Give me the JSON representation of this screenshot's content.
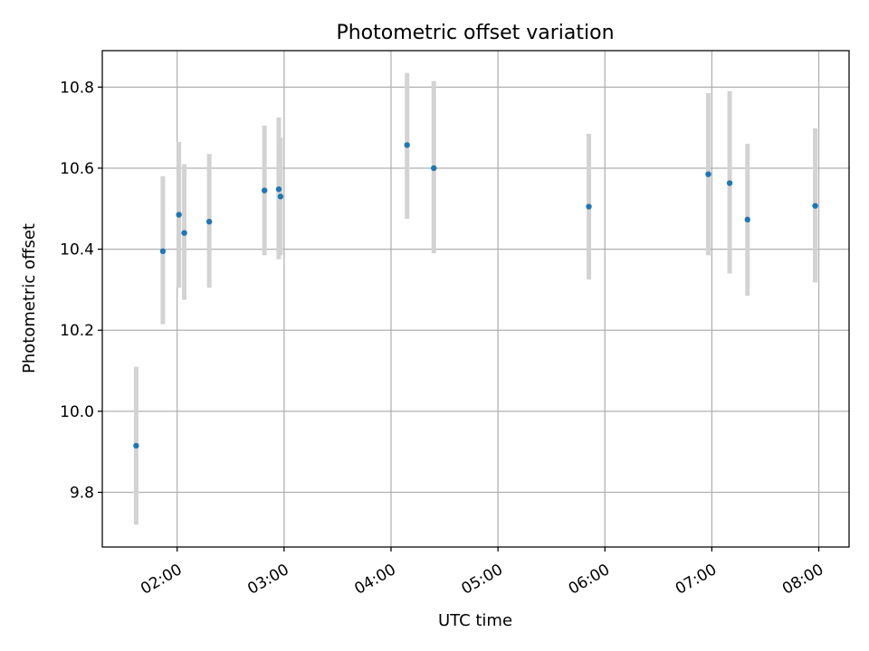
{
  "chart_data": {
    "type": "scatter",
    "title": "Photometric offset variation",
    "xlabel": "UTC time",
    "ylabel": "Photometric offset",
    "x_is_time": true,
    "xlim": [
      "01:18",
      "08:17"
    ],
    "ylim": [
      9.665,
      10.89
    ],
    "xticks": [
      "02:00",
      "03:00",
      "04:00",
      "05:00",
      "06:00",
      "07:00",
      "08:00"
    ],
    "yticks": [
      9.8,
      10.0,
      10.2,
      10.4,
      10.6,
      10.8
    ],
    "ytick_labels": [
      "9.8",
      "10.0",
      "10.2",
      "10.4",
      "10.6",
      "10.8"
    ],
    "grid": true,
    "legend": "none",
    "colors": {
      "point": "#1f77b4",
      "errorbar": "#d3d3d3",
      "grid": "#b0b0b0"
    },
    "points": [
      {
        "x": "01:37",
        "y": 9.915,
        "lo": 9.72,
        "hi": 10.11
      },
      {
        "x": "01:52",
        "y": 10.395,
        "lo": 10.215,
        "hi": 10.58
      },
      {
        "x": "02:01",
        "y": 10.485,
        "lo": 10.305,
        "hi": 10.665
      },
      {
        "x": "02:04",
        "y": 10.44,
        "lo": 10.275,
        "hi": 10.61
      },
      {
        "x": "02:18",
        "y": 10.468,
        "lo": 10.305,
        "hi": 10.635
      },
      {
        "x": "02:49",
        "y": 10.545,
        "lo": 10.385,
        "hi": 10.705
      },
      {
        "x": "02:57",
        "y": 10.548,
        "lo": 10.375,
        "hi": 10.725
      },
      {
        "x": "02:58",
        "y": 10.53,
        "lo": 10.385,
        "hi": 10.675
      },
      {
        "x": "04:09",
        "y": 10.657,
        "lo": 10.475,
        "hi": 10.835
      },
      {
        "x": "04:24",
        "y": 10.6,
        "lo": 10.39,
        "hi": 10.815
      },
      {
        "x": "05:51",
        "y": 10.505,
        "lo": 10.325,
        "hi": 10.685
      },
      {
        "x": "06:58",
        "y": 10.585,
        "lo": 10.385,
        "hi": 10.785
      },
      {
        "x": "07:10",
        "y": 10.563,
        "lo": 10.34,
        "hi": 10.79
      },
      {
        "x": "07:20",
        "y": 10.473,
        "lo": 10.285,
        "hi": 10.66
      },
      {
        "x": "07:58",
        "y": 10.507,
        "lo": 10.318,
        "hi": 10.698
      }
    ]
  }
}
